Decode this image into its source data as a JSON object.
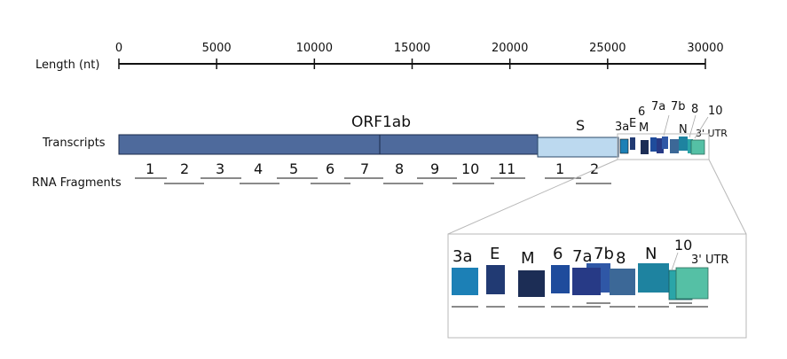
{
  "axis": {
    "label": "Length (nt)",
    "min": 0,
    "max": 30000,
    "ticks": [
      0,
      5000,
      10000,
      15000,
      20000,
      25000,
      30000
    ]
  },
  "rows": {
    "transcripts": "Transcripts",
    "fragments": "RNA Fragments"
  },
  "genes": {
    "orf1ab": "ORF1ab",
    "s": "S",
    "small": [
      "3a",
      "E",
      "M",
      "6",
      "7a",
      "7b",
      "8",
      "N",
      "10",
      "3' UTR"
    ]
  },
  "fragments": {
    "orf1ab": [
      "1",
      "2",
      "3",
      "4",
      "5",
      "6",
      "7",
      "8",
      "9",
      "10",
      "11"
    ],
    "s": [
      "1",
      "2"
    ]
  },
  "inset": {
    "labels": [
      "3a",
      "E",
      "M",
      "6",
      "7a",
      "7b",
      "8",
      "N",
      "10",
      "3' UTR"
    ]
  },
  "colors": {
    "orf1ab": "#4e6a9c",
    "s": "#bcd9ef",
    "c3a": "#1c80b6",
    "e": "#213a73",
    "m": "#1c2d55",
    "c6": "#1f4c9c",
    "c7a": "#273a86",
    "c7b": "#2f57a6",
    "c8": "#3c6897",
    "n": "#1e83a0",
    "c10": "#2aa5a8",
    "utr": "#55c0a5"
  }
}
